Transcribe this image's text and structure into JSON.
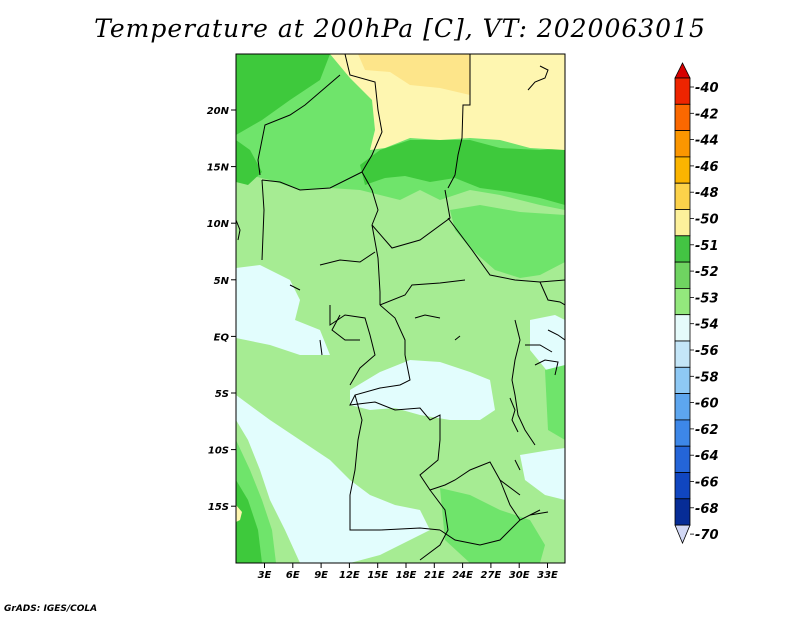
{
  "title": "Temperature at 200hPa [C], VT: 2020063015",
  "credit": "GrADS: IGES/COLA",
  "map": {
    "lat_labels": [
      "20N",
      "15N",
      "10N",
      "5N",
      "EQ",
      "5S",
      "10S",
      "15S"
    ],
    "lon_labels": [
      "3E",
      "6E",
      "9E",
      "12E",
      "15E",
      "18E",
      "21E",
      "24E",
      "27E",
      "30E",
      "33E"
    ],
    "fill_colors": {
      "warm_-50": "#fef6b0",
      "warm_-48": "#fde58a",
      "-51": "#3ec93c",
      "-52": "#6fe46b",
      "-53": "#a6ec93",
      "-54": "#e2fdfd"
    }
  },
  "colorbar": {
    "labels": [
      "-40",
      "-42",
      "-44",
      "-46",
      "-48",
      "-50",
      "-51",
      "-52",
      "-53",
      "-54",
      "-56",
      "-58",
      "-60",
      "-62",
      "-64",
      "-66",
      "-68",
      "-70"
    ],
    "colors": [
      "#ee2400",
      "#fb6800",
      "#fb9600",
      "#fbb400",
      "#fcd24a",
      "#fdf19b",
      "#43c443",
      "#6fd461",
      "#93e87d",
      "#e5fbfb",
      "#c4e6f8",
      "#8ec9f5",
      "#5da6ef",
      "#3d87e8",
      "#2465d8",
      "#1046c0",
      "#062c96",
      "#041368"
    ],
    "end_colors": {
      "top": "#d60000",
      "bottom": "#d2d8f5"
    }
  }
}
